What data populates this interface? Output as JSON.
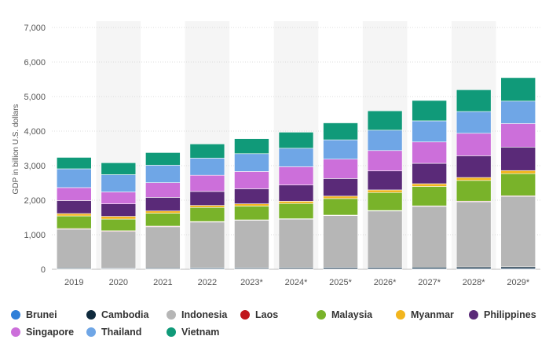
{
  "chart_data": {
    "type": "bar",
    "stacked": true,
    "title": "",
    "xlabel": "",
    "ylabel": "GDP in billion U.S. dollars",
    "ylim": [
      0,
      7000
    ],
    "yticks": [
      0,
      1000,
      2000,
      3000,
      4000,
      5000,
      6000,
      7000
    ],
    "ytick_labels": [
      "0",
      "1,000",
      "2,000",
      "3,000",
      "4,000",
      "5,000",
      "6,000",
      "7,000"
    ],
    "grid": true,
    "legend_position": "bottom",
    "categories": [
      "2019",
      "2020",
      "2021",
      "2022",
      "2023*",
      "2024*",
      "2025*",
      "2026*",
      "2027*",
      "2028*",
      "2029*"
    ],
    "series": [
      {
        "name": "Brunei",
        "color": "#2f7fd8",
        "values": [
          13,
          12,
          14,
          17,
          15,
          15,
          16,
          16,
          17,
          17,
          18
        ]
      },
      {
        "name": "Cambodia",
        "color": "#0f2a3d",
        "values": [
          27,
          25,
          27,
          30,
          32,
          35,
          38,
          41,
          44,
          48,
          52
        ]
      },
      {
        "name": "Indonesia",
        "color": "#b6b6b6",
        "values": [
          1120,
          1060,
          1190,
          1320,
          1370,
          1400,
          1500,
          1630,
          1760,
          1890,
          2040
        ]
      },
      {
        "name": "Laos",
        "color": "#c0161c",
        "values": [
          19,
          19,
          19,
          16,
          14,
          14,
          14,
          15,
          16,
          17,
          18
        ]
      },
      {
        "name": "Malaysia",
        "color": "#79b32a",
        "values": [
          365,
          337,
          373,
          407,
          400,
          440,
          480,
          520,
          560,
          600,
          640
        ]
      },
      {
        "name": "Myanmar",
        "color": "#f2b51e",
        "values": [
          69,
          79,
          65,
          59,
          65,
          65,
          70,
          75,
          80,
          85,
          90
        ]
      },
      {
        "name": "Philippines",
        "color": "#5a2a78",
        "values": [
          377,
          362,
          394,
          404,
          435,
          470,
          510,
          550,
          590,
          630,
          680
        ]
      },
      {
        "name": "Singapore",
        "color": "#cc6fda",
        "values": [
          375,
          345,
          425,
          470,
          500,
          530,
          560,
          590,
          620,
          650,
          680
        ]
      },
      {
        "name": "Thailand",
        "color": "#6fa6e6",
        "values": [
          544,
          500,
          506,
          495,
          515,
          535,
          560,
          590,
          610,
          630,
          650
        ]
      },
      {
        "name": "Vietnam",
        "color": "#109a79",
        "values": [
          330,
          345,
          365,
          410,
          435,
          465,
          490,
          560,
          590,
          630,
          680
        ]
      }
    ]
  }
}
